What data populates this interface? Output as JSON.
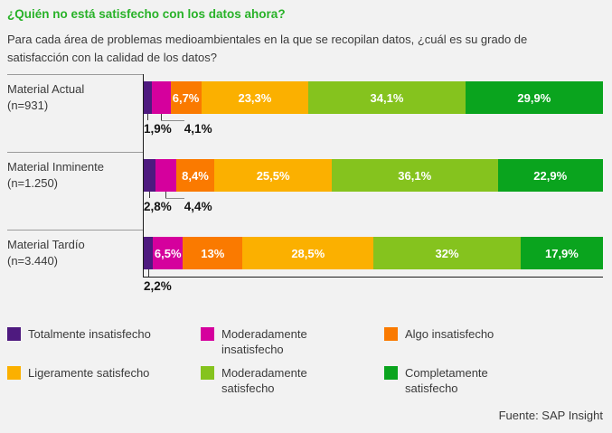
{
  "page": {
    "background": "#f2f2f2"
  },
  "header": {
    "title": "¿Quién no está satisfecho con los datos ahora?",
    "title_color": "#28b228",
    "subtitle": "Para cada área de problemas medioambientales en la que se recopilan datos, ¿cuál es su grado de satisfacción con la calidad de los datos?"
  },
  "chart_data": {
    "type": "bar",
    "orientation": "horizontal",
    "stacked": true,
    "unit": "%",
    "xlim": [
      0,
      100
    ],
    "grid": false,
    "legend_position": "bottom",
    "categories": [
      "Material Actual (n=931)",
      "Material Inminente (n=1.250)",
      "Material Tardío (n=3.440)"
    ],
    "series": [
      {
        "name": "Totalmente insatisfecho",
        "color": "#4e1a7f",
        "values": [
          1.9,
          2.8,
          2.2
        ]
      },
      {
        "name": "Moderadamente insatisfecho",
        "color": "#d5009d",
        "values": [
          4.1,
          4.4,
          6.5
        ]
      },
      {
        "name": "Algo insatisfecho",
        "color": "#fa7a00",
        "values": [
          6.7,
          8.4,
          13
        ]
      },
      {
        "name": "Ligeramente satisfecho",
        "color": "#fbb000",
        "values": [
          23.3,
          25.5,
          28.5
        ]
      },
      {
        "name": "Moderadamente satisfecho",
        "color": "#85c31e",
        "values": [
          34.1,
          36.1,
          32
        ]
      },
      {
        "name": "Completamente satisfecho",
        "color": "#0aa41e",
        "values": [
          29.9,
          22.9,
          17.9
        ]
      }
    ],
    "axis_color": "#1c1c1c"
  },
  "rows": [
    {
      "label": "Material Actual",
      "n": "(n=931)",
      "segments": [
        {
          "value": 1.9,
          "display": "1,9%",
          "label_position": "below"
        },
        {
          "value": 4.1,
          "display": "4,1%",
          "label_position": "below"
        },
        {
          "value": 6.7,
          "display": "6,7%",
          "label_position": "inside"
        },
        {
          "value": 23.3,
          "display": "23,3%",
          "label_position": "inside"
        },
        {
          "value": 34.1,
          "display": "34,1%",
          "label_position": "inside"
        },
        {
          "value": 29.9,
          "display": "29,9%",
          "label_position": "inside"
        }
      ]
    },
    {
      "label": "Material Inminente",
      "n": "(n=1.250)",
      "segments": [
        {
          "value": 2.8,
          "display": "2,8%",
          "label_position": "below"
        },
        {
          "value": 4.4,
          "display": "4,4%",
          "label_position": "below"
        },
        {
          "value": 8.4,
          "display": "8,4%",
          "label_position": "inside"
        },
        {
          "value": 25.5,
          "display": "25,5%",
          "label_position": "inside"
        },
        {
          "value": 36.1,
          "display": "36,1%",
          "label_position": "inside"
        },
        {
          "value": 22.9,
          "display": "22,9%",
          "label_position": "inside"
        }
      ]
    },
    {
      "label": "Material Tardío",
      "n": "(n=3.440)",
      "segments": [
        {
          "value": 2.2,
          "display": "2,2%",
          "label_position": "below"
        },
        {
          "value": 6.5,
          "display": "6,5%",
          "label_position": "inside"
        },
        {
          "value": 13,
          "display": "13%",
          "label_position": "inside"
        },
        {
          "value": 28.5,
          "display": "28,5%",
          "label_position": "inside"
        },
        {
          "value": 32,
          "display": "32%",
          "label_position": "inside"
        },
        {
          "value": 17.9,
          "display": "17,9%",
          "label_position": "inside"
        }
      ]
    }
  ],
  "footer": {
    "source": "Fuente: SAP Insight"
  }
}
